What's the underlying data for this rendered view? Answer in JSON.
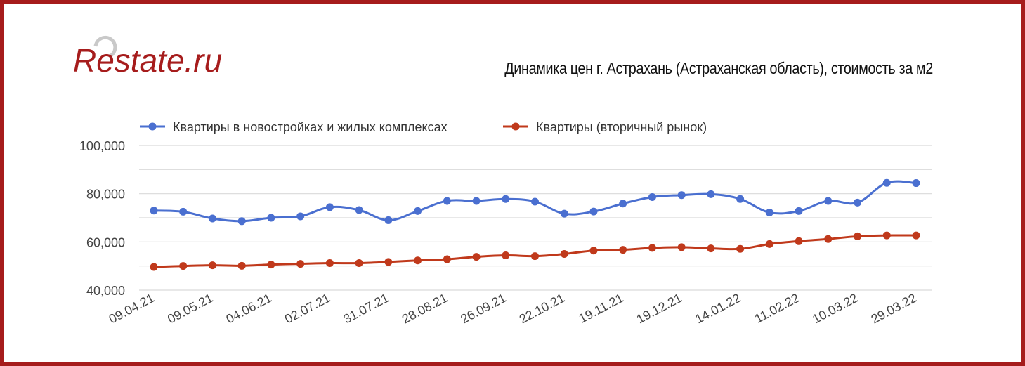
{
  "brand": {
    "logo_text": "Restate.ru",
    "logo_color": "#a61c1c"
  },
  "colors": {
    "frame": "#a61c1c",
    "series_new": "#4a6fd0",
    "series_secondary": "#c0391b",
    "grid": "#d9d9d9"
  },
  "chart_data": {
    "type": "line",
    "title": "Динамика цен г. Астрахань (Астраханская область), стоимость за м2",
    "xlabel": "",
    "ylabel": "",
    "ylim": [
      40000,
      100000
    ],
    "yticks": [
      40000,
      60000,
      80000,
      100000
    ],
    "ytick_labels": [
      "40,000",
      "60,000",
      "80,000",
      "100,000"
    ],
    "grid": true,
    "legend_position": "top-left",
    "x_tick_labels": [
      "09.04.21",
      "09.05.21",
      "04.06.21",
      "02.07.21",
      "31.07.21",
      "28.08.21",
      "26.09.21",
      "22.10.21",
      "19.11.21",
      "19.12.21",
      "14.01.22",
      "11.02.22",
      "10.03.22",
      "29.03.22"
    ],
    "series": [
      {
        "name": "Квартиры в новостройках и жилых комплексах",
        "color": "#4a6fd0",
        "values": [
          73000,
          72500,
          69700,
          68600,
          70000,
          70600,
          74400,
          73200,
          69000,
          72800,
          77000,
          77000,
          77800,
          76700,
          71700,
          72600,
          75900,
          78600,
          79400,
          79800,
          77800,
          72200,
          72800,
          77000,
          76300,
          84500,
          84400
        ]
      },
      {
        "name": "Квартиры (вторичный рынок)",
        "color": "#c0391b",
        "values": [
          49600,
          50000,
          50300,
          50100,
          50600,
          50900,
          51200,
          51200,
          51700,
          52300,
          52800,
          53800,
          54400,
          54100,
          55000,
          56400,
          56700,
          57500,
          57800,
          57300,
          57100,
          59100,
          60300,
          61200,
          62300,
          62700,
          62700
        ]
      }
    ]
  }
}
